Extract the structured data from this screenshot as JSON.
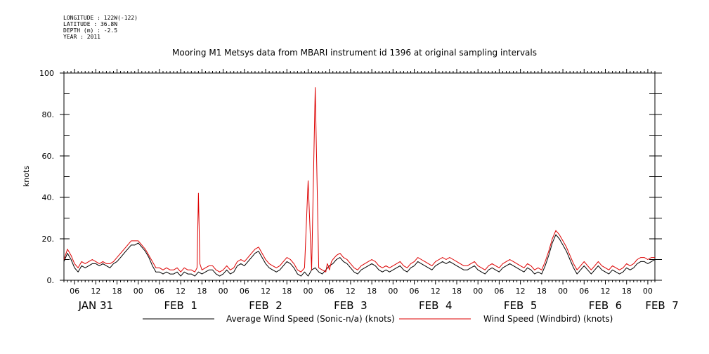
{
  "meta_lines": [
    "LONGITUDE : 122W(-122)",
    "LATITUDE : 36.8N",
    "DEPTH (m) : -2.5",
    "YEAR : 2011"
  ],
  "chart_data": {
    "type": "line",
    "title": "Mooring M1 Metsys data from MBARI instrument id 1396 at original sampling intervals",
    "ylabel": "knots",
    "xlabel": "",
    "ylim": [
      0,
      100
    ],
    "yticks": [
      0,
      20,
      40,
      60,
      80,
      100
    ],
    "ytick_labels": [
      "0.",
      "20.",
      "40.",
      "60.",
      "80.",
      "100"
    ],
    "x_unit": "hours since 2011-01-31 00:00",
    "xlim": [
      3,
      170
    ],
    "hour_tick_labels": [
      "06",
      "12",
      "18",
      "00",
      "06",
      "12",
      "18",
      "00",
      "06",
      "12",
      "18",
      "00",
      "06",
      "12",
      "18",
      "00",
      "06",
      "12",
      "18",
      "00",
      "06",
      "12",
      "18",
      "00",
      "06",
      "12",
      "18",
      "00"
    ],
    "hour_tick_values": [
      6,
      12,
      18,
      24,
      30,
      36,
      42,
      48,
      54,
      60,
      66,
      72,
      78,
      84,
      90,
      96,
      102,
      108,
      114,
      120,
      126,
      132,
      138,
      144,
      150,
      156,
      162,
      168
    ],
    "day_labels": [
      {
        "text": "JAN 31",
        "x": 12
      },
      {
        "text": "FEB  1",
        "x": 36
      },
      {
        "text": "FEB  2",
        "x": 60
      },
      {
        "text": "FEB  3",
        "x": 84
      },
      {
        "text": "FEB  4",
        "x": 108
      },
      {
        "text": "FEB  5",
        "x": 132
      },
      {
        "text": "FEB  6",
        "x": 156
      },
      {
        "text": "FEB  7",
        "x": 172
      }
    ],
    "legend_placement": "bottom",
    "series": [
      {
        "name": "Average Wind Speed (Sonic-n/a) (knots)",
        "color": "#000000",
        "x": [
          3,
          4,
          5,
          6,
          7,
          8,
          9,
          10,
          11,
          12,
          13,
          14,
          15,
          16,
          17,
          18,
          19,
          20,
          21,
          22,
          23,
          24,
          25,
          26,
          27,
          28,
          29,
          30,
          31,
          32,
          33,
          34,
          35,
          36,
          37,
          38,
          39,
          40,
          41,
          42,
          43,
          44,
          45,
          46,
          47,
          48,
          49,
          50,
          51,
          52,
          53,
          54,
          55,
          56,
          57,
          58,
          59,
          60,
          61,
          62,
          63,
          64,
          65,
          66,
          67,
          68,
          69,
          70,
          71,
          72,
          73,
          74,
          75,
          76,
          77,
          78,
          79,
          80,
          81,
          82,
          83,
          84,
          85,
          86,
          87,
          88,
          89,
          90,
          91,
          92,
          93,
          94,
          95,
          96,
          97,
          98,
          99,
          100,
          101,
          102,
          103,
          104,
          105,
          106,
          107,
          108,
          109,
          110,
          111,
          112,
          113,
          114,
          115,
          116,
          117,
          118,
          119,
          120,
          121,
          122,
          123,
          124,
          125,
          126,
          127,
          128,
          129,
          130,
          131,
          132,
          133,
          134,
          135,
          136,
          137,
          138,
          139,
          140,
          141,
          142,
          143,
          144,
          145,
          146,
          147,
          148,
          149,
          150,
          151,
          152,
          153,
          154,
          155,
          156,
          157,
          158,
          159,
          160,
          161,
          162,
          163,
          164,
          165,
          166,
          167,
          168,
          169,
          170
        ],
        "values": [
          9,
          13,
          10,
          6,
          4,
          7,
          6,
          7,
          8,
          8,
          7,
          8,
          7,
          6,
          8,
          9,
          11,
          13,
          15,
          17,
          17,
          18,
          16,
          14,
          11,
          7,
          4,
          4,
          3,
          4,
          3,
          3,
          4,
          2,
          4,
          3,
          3,
          2,
          4,
          3,
          4,
          5,
          5,
          3,
          2,
          3,
          5,
          3,
          4,
          7,
          8,
          7,
          9,
          11,
          13,
          14,
          11,
          8,
          6,
          5,
          4,
          5,
          7,
          9,
          8,
          6,
          3,
          2,
          4,
          2,
          5,
          6,
          4,
          3,
          5,
          7,
          8,
          10,
          11,
          9,
          8,
          6,
          4,
          3,
          5,
          6,
          7,
          8,
          7,
          5,
          4,
          5,
          4,
          5,
          6,
          7,
          5,
          4,
          6,
          7,
          9,
          8,
          7,
          6,
          5,
          7,
          8,
          9,
          8,
          9,
          8,
          7,
          6,
          5,
          5,
          6,
          7,
          5,
          4,
          3,
          5,
          6,
          5,
          4,
          6,
          7,
          8,
          7,
          6,
          5,
          4,
          6,
          5,
          3,
          4,
          3,
          7,
          12,
          18,
          22,
          20,
          17,
          14,
          10,
          6,
          3,
          5,
          7,
          5,
          3,
          5,
          7,
          5,
          4,
          3,
          5,
          4,
          3,
          4,
          6,
          5,
          6,
          8,
          9,
          9,
          8,
          9,
          10
        ]
      },
      {
        "name": "Wind Speed (Windbird) (knots)",
        "color": "#dd0000",
        "x": [
          3,
          4,
          5,
          6,
          7,
          8,
          9,
          10,
          11,
          12,
          13,
          14,
          15,
          16,
          17,
          18,
          19,
          20,
          21,
          22,
          23,
          24,
          25,
          26,
          27,
          28,
          29,
          30,
          31,
          32,
          33,
          34,
          35,
          36,
          37,
          38,
          39,
          40,
          40.6,
          41,
          41.4,
          42,
          43,
          44,
          45,
          46,
          47,
          48,
          49,
          50,
          51,
          52,
          53,
          54,
          55,
          56,
          57,
          58,
          59,
          60,
          61,
          62,
          63,
          64,
          65,
          66,
          67,
          68,
          69,
          70,
          71,
          72,
          73,
          74,
          75,
          76,
          77,
          77.4,
          77.7,
          78,
          78.3,
          78.6,
          79,
          80,
          81,
          82,
          83,
          84,
          85,
          86,
          87,
          88,
          89,
          90,
          91,
          92,
          93,
          94,
          95,
          96,
          97,
          98,
          99,
          100,
          101,
          102,
          103,
          104,
          105,
          106,
          107,
          108,
          109,
          110,
          111,
          112,
          113,
          114,
          115,
          116,
          117,
          118,
          119,
          120,
          121,
          122,
          123,
          124,
          125,
          126,
          127,
          128,
          129,
          130,
          131,
          132,
          133,
          134,
          135,
          136,
          137,
          138,
          139,
          140,
          141,
          142,
          143,
          144,
          145,
          146,
          147,
          148,
          149,
          150,
          151,
          152,
          153,
          154,
          155,
          156,
          157,
          158,
          159,
          160,
          161,
          162,
          163,
          164,
          165,
          166,
          167,
          168,
          169,
          170
        ],
        "values": [
          10,
          15,
          12,
          8,
          6,
          9,
          8,
          9,
          10,
          9,
          8,
          9,
          8,
          8,
          9,
          11,
          13,
          15,
          17,
          19,
          19,
          19,
          17,
          15,
          12,
          9,
          6,
          6,
          5,
          6,
          5,
          5,
          6,
          4,
          6,
          5,
          5,
          4,
          6,
          42,
          8,
          5,
          6,
          7,
          7,
          5,
          4,
          5,
          7,
          5,
          6,
          9,
          10,
          9,
          11,
          13,
          15,
          16,
          13,
          10,
          8,
          7,
          6,
          7,
          9,
          11,
          10,
          8,
          5,
          4,
          6,
          48,
          5,
          93,
          6,
          5,
          4,
          8,
          7,
          5,
          7,
          9,
          10,
          12,
          13,
          11,
          10,
          8,
          6,
          5,
          7,
          8,
          9,
          10,
          9,
          7,
          6,
          7,
          6,
          7,
          8,
          9,
          7,
          6,
          8,
          9,
          11,
          10,
          9,
          8,
          7,
          9,
          10,
          11,
          10,
          11,
          10,
          9,
          8,
          7,
          7,
          8,
          9,
          7,
          6,
          5,
          7,
          8,
          7,
          6,
          8,
          9,
          10,
          9,
          8,
          7,
          6,
          8,
          7,
          5,
          6,
          5,
          9,
          14,
          20,
          24,
          22,
          19,
          16,
          12,
          8,
          5,
          7,
          9,
          7,
          5,
          7,
          9,
          7,
          6,
          5,
          7,
          6,
          5,
          6,
          8,
          7,
          8,
          10,
          11,
          11,
          10,
          11,
          11
        ]
      }
    ]
  }
}
